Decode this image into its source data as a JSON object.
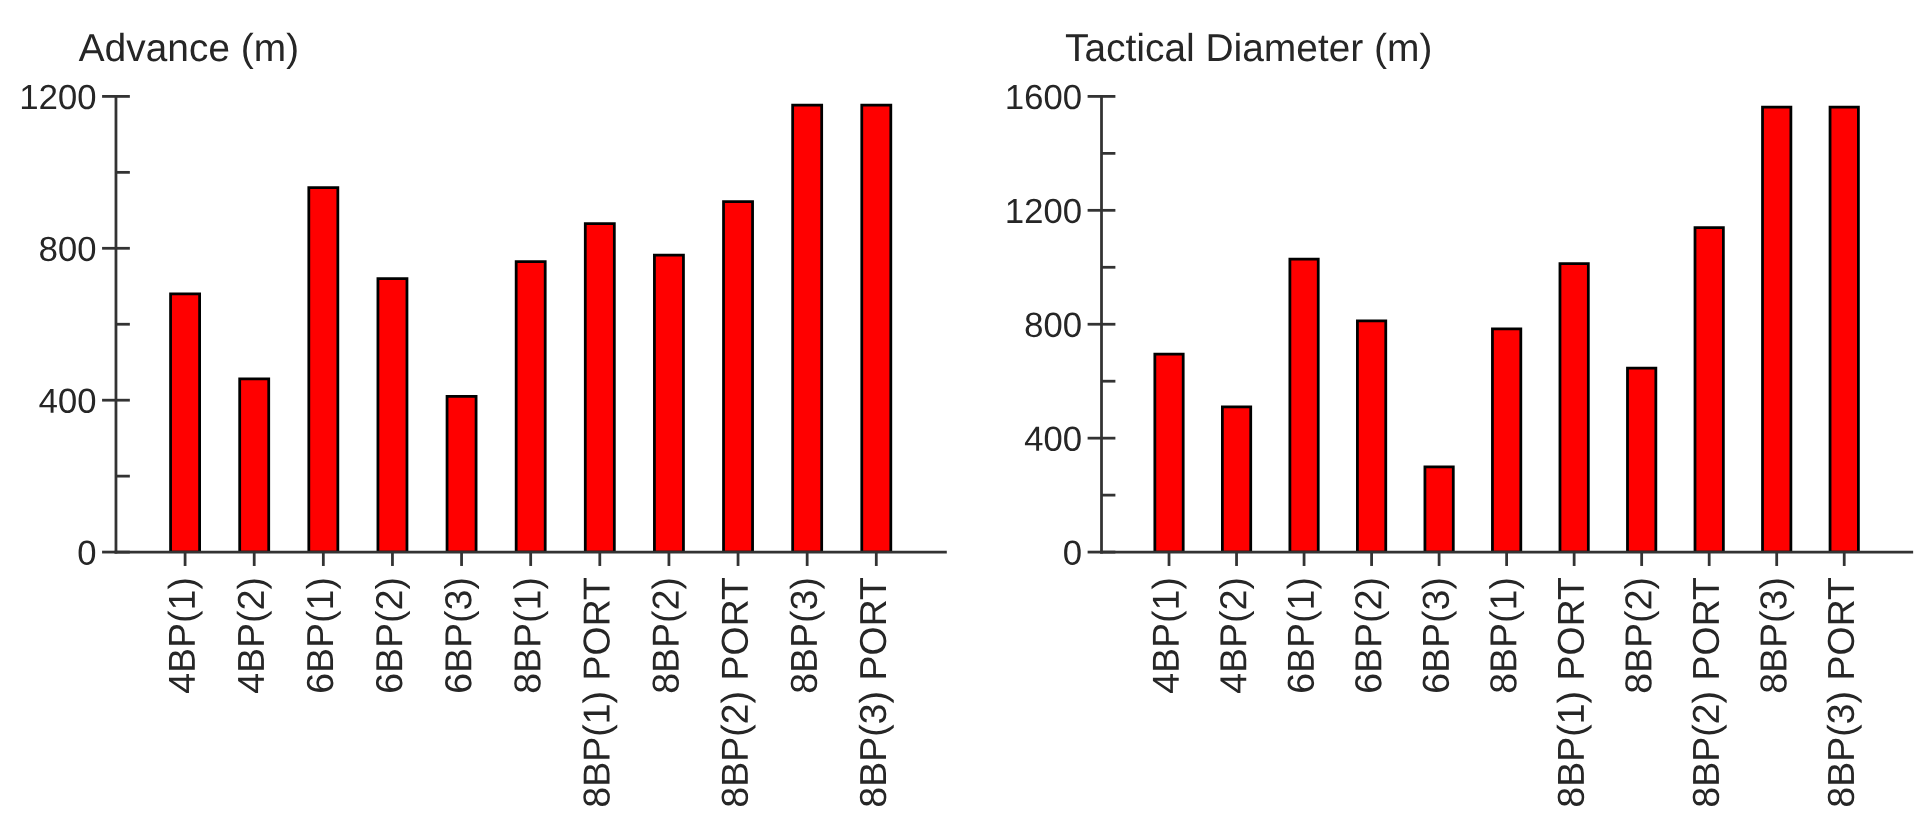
{
  "chart_data": [
    {
      "type": "bar",
      "ylabel": "Advance (m)",
      "categories": [
        "4BP(1)",
        "4BP(2)",
        "6BP(1)",
        "6BP(2)",
        "6BP(3)",
        "8BP(1)",
        "8BP(1) PORT",
        "8BP(2)",
        "8BP(2) PORT",
        "8BP(3)",
        "8BP(3) PORT"
      ],
      "values": [
        680,
        456,
        960,
        720,
        410,
        765,
        865,
        782,
        923,
        1177,
        1177
      ],
      "color": "#ff0000",
      "ylim": [
        0,
        1200
      ],
      "yticks": [
        0,
        {
          "value": 200,
          "label": null
        },
        400,
        {
          "value": 600,
          "label": null
        },
        800,
        {
          "value": 1000,
          "label": null
        },
        1200
      ]
    },
    {
      "type": "bar",
      "ylabel": "Tactical Diameter (m)",
      "categories": [
        "4BP(1)",
        "4BP(2)",
        "6BP(1)",
        "6BP(2)",
        "6BP(3)",
        "8BP(1)",
        "8BP(1) PORT",
        "8BP(2)",
        "8BP(2) PORT",
        "8BP(3)",
        "8BP(3) PORT"
      ],
      "values": [
        695,
        510,
        1029,
        812,
        299,
        784,
        1013,
        646,
        1139,
        1562,
        1562
      ],
      "color": "#ff0000",
      "ylim": [
        0,
        1600
      ],
      "yticks": [
        0,
        {
          "value": 200,
          "label": null
        },
        400,
        {
          "value": 600,
          "label": null
        },
        800,
        {
          "value": 1000,
          "label": null
        },
        1200,
        {
          "value": 1400,
          "label": null
        },
        1600
      ]
    }
  ]
}
